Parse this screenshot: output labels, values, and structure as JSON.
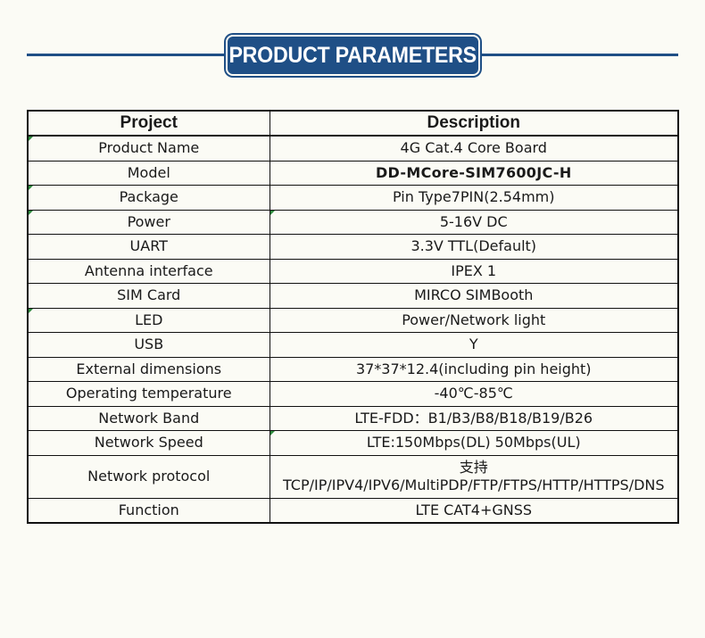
{
  "header": {
    "title": "PRODUCT PARAMETERS",
    "accent_color": "#1f4f86"
  },
  "table": {
    "columns": [
      "Project",
      "Description"
    ],
    "rows": [
      {
        "project": "Product Name",
        "description": "4G Cat.4 Core Board"
      },
      {
        "project": "Model",
        "description": "DD-MCore-SIM7600JC-H"
      },
      {
        "project": "Package",
        "description": "Pin Type7PIN(2.54mm)"
      },
      {
        "project": "Power",
        "description": "5-16V DC"
      },
      {
        "project": "UART",
        "description": "3.3V TTL(Default)"
      },
      {
        "project": "Antenna interface",
        "description": "IPEX 1"
      },
      {
        "project": "SIM Card",
        "description": "MIRCO SIMBooth"
      },
      {
        "project": "LED",
        "description": "Power/Network light"
      },
      {
        "project": "USB",
        "description": "Y"
      },
      {
        "project": "External dimensions",
        "description": "37*37*12.4(including pin height)"
      },
      {
        "project": "Operating temperature",
        "description": "-40℃-85℃"
      },
      {
        "project": "Network Band",
        "description": "LTE-FDD：B1/B3/B8/B18/B19/B26"
      },
      {
        "project": "Network Speed",
        "description": "LTE:150Mbps(DL)  50Mbps(UL)"
      },
      {
        "project": "Network protocol",
        "description": "支持TCP/IP/IPV4/IPV6/MultiPDP/FTP/FTPS/HTTP/HTTPS/DNS"
      },
      {
        "project": "Function",
        "description": "LTE  CAT4+GNSS"
      }
    ]
  }
}
